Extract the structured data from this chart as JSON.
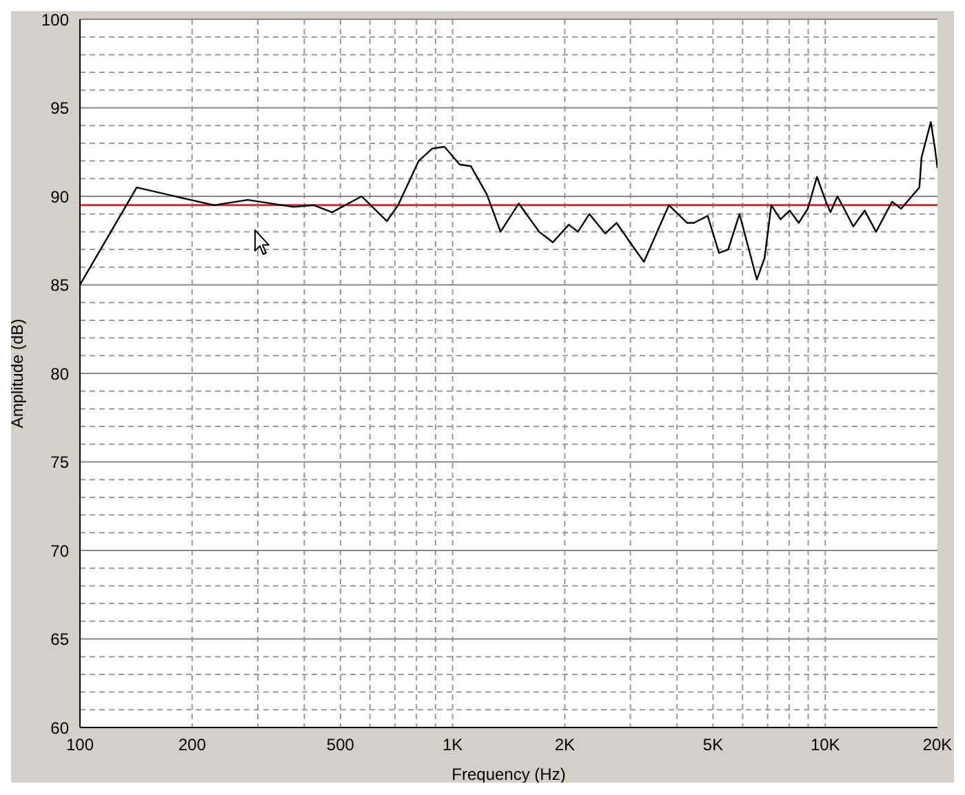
{
  "chart_data": {
    "type": "line",
    "xlabel": "Frequency (Hz)",
    "ylabel": "Amplitude (dB)",
    "log": "x",
    "grid": true,
    "marker": "none",
    "line_style": "solid",
    "xlim": [
      100,
      20000
    ],
    "ylim": [
      60,
      100
    ],
    "xticks": [
      100,
      200,
      500,
      {
        "value": 1000,
        "label": "1K"
      },
      {
        "value": 2000,
        "label": "2K"
      },
      {
        "value": 5000,
        "label": "5K"
      },
      {
        "value": 10000,
        "label": "10K"
      },
      {
        "value": 20000,
        "label": "20K"
      }
    ],
    "yticks": [
      60,
      65,
      70,
      75,
      80,
      85,
      90,
      95,
      100
    ],
    "ref_lines": [
      {
        "axis": "y",
        "value": 89.5,
        "color": "#c03040"
      }
    ],
    "series": [
      {
        "color": "#000000",
        "x": [
          100,
          142,
          229,
          282,
          374,
          424,
          475,
          570,
          666,
          714,
          811,
          882,
          951,
          1044,
          1120,
          1236,
          1345,
          1505,
          1707,
          1858,
          2050,
          2170,
          2328,
          2570,
          2754,
          3041,
          3262,
          3806,
          4262,
          4444,
          4836,
          5188,
          5489,
          5888,
          6553,
          6871,
          7166,
          7584,
          8026,
          8485,
          8978,
          9500,
          10040,
          10330,
          10780,
          11240,
          11890,
          12760,
          13690,
          15110,
          15980,
          17890,
          18130,
          19200,
          19700,
          20000
        ],
        "values": [
          85.0,
          90.5,
          89.5,
          89.8,
          89.4,
          89.5,
          89.1,
          90.0,
          88.6,
          89.5,
          92.0,
          92.7,
          92.8,
          91.8,
          91.7,
          90.1,
          88.0,
          89.6,
          88.0,
          87.4,
          88.4,
          88.0,
          89.0,
          87.9,
          88.5,
          87.2,
          86.3,
          89.5,
          88.5,
          88.5,
          88.9,
          86.8,
          87.0,
          89.0,
          85.3,
          86.5,
          89.5,
          88.7,
          89.2,
          88.5,
          89.3,
          91.1,
          89.7,
          89.1,
          90.0,
          89.3,
          88.3,
          89.2,
          88.0,
          89.7,
          89.3,
          90.5,
          92.2,
          94.2,
          92.7,
          91.6
        ]
      }
    ]
  }
}
